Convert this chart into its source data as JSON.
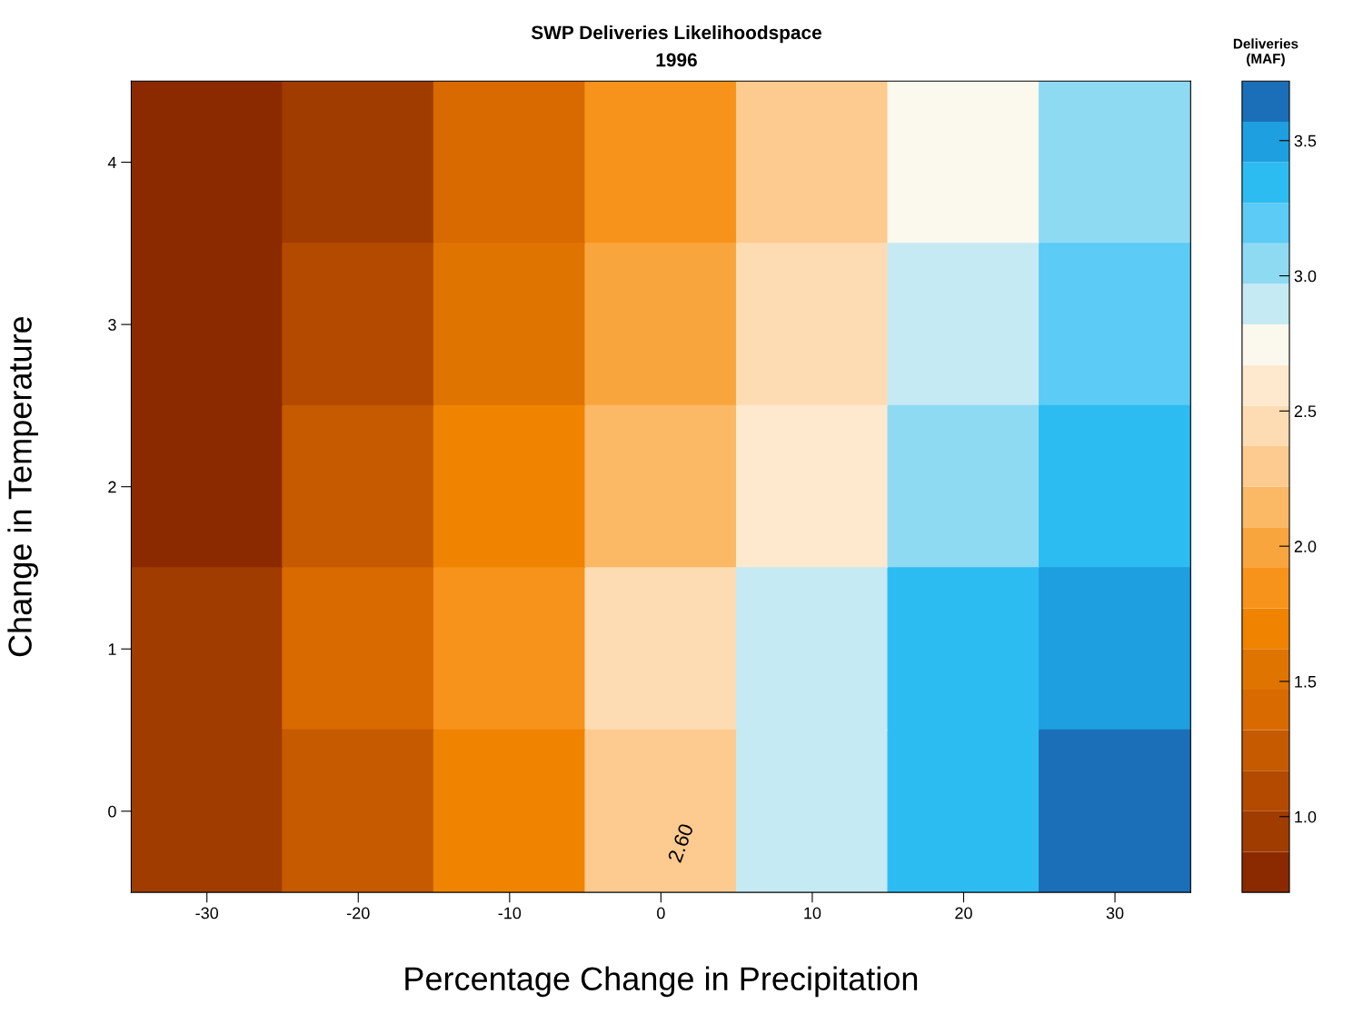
{
  "chart_data": {
    "type": "heatmap",
    "title": "SWP Deliveries Likelihoodspace",
    "subtitle": "1996",
    "xlabel": "Percentage Change in Precipitation",
    "ylabel": "Change in Temperature",
    "clabel": "Deliveries\n(MAF)",
    "categories": [
      "-30",
      "-20",
      "-10",
      "0",
      "10",
      "20",
      "30"
    ],
    "y_categories": [
      "4",
      "3",
      "2",
      "1",
      "0"
    ],
    "cells": [
      [
        0.8,
        0.95,
        1.4,
        1.85,
        2.3,
        2.75,
        3.05
      ],
      [
        0.8,
        1.1,
        1.55,
        2.0,
        2.45,
        2.9,
        3.2
      ],
      [
        0.8,
        1.25,
        1.7,
        2.15,
        2.6,
        3.05,
        3.35
      ],
      [
        0.95,
        1.4,
        1.85,
        2.45,
        2.9,
        3.35,
        3.5
      ],
      [
        0.95,
        1.25,
        1.7,
        2.3,
        2.9,
        3.35,
        3.65
      ]
    ],
    "colors": [
      "#8b2a00",
      "#a03c00",
      "#b34a00",
      "#c65a00",
      "#d86a00",
      "#e07400",
      "#f08300",
      "#f7931a",
      "#f9a53e",
      "#fbb865",
      "#fdca8f",
      "#fddcb4",
      "#fee9cf",
      "#fbf8ee",
      "#c6eaf4",
      "#8fdaf3",
      "#5ccbf5",
      "#2dbcf2",
      "#1d9fe0",
      "#1b6fb8"
    ],
    "clim": [
      0.72,
      3.72
    ],
    "cticks": [
      {
        "value": 1,
        "label": "1.0"
      },
      1.5,
      {
        "value": 2,
        "label": "2.0"
      },
      2.5,
      {
        "value": 3,
        "label": "3.0"
      },
      3.5
    ],
    "annotations": [
      "2.60"
    ],
    "grid": false
  }
}
